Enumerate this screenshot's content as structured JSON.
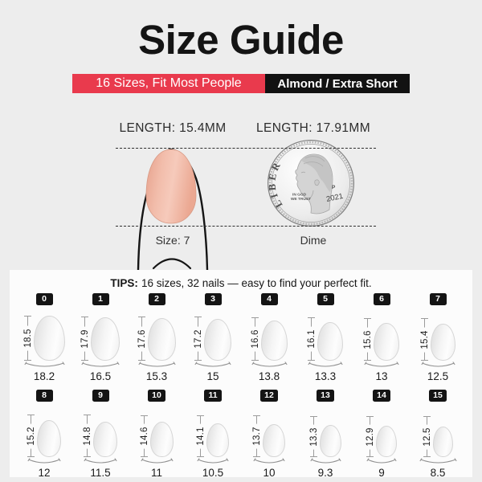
{
  "title": "Size Guide",
  "banner": {
    "left": "16 Sizes, Fit Most People",
    "right": "Almond / Extra Short"
  },
  "comparison": {
    "nail": {
      "length_label": "LENGTH: 15.4MM",
      "caption": "Size: 7"
    },
    "dime": {
      "length_label": "LENGTH: 17.91MM",
      "caption": "Dime",
      "coin": {
        "liberty": "LIBERTY",
        "motto_line1": "IN GOD",
        "motto_line2": "WE TRUST",
        "year": "2021",
        "mint_mark": "P"
      }
    }
  },
  "tips": {
    "label": "TIPS:",
    "text": "16 sizes, 32 nails — easy to find your perfect fit."
  },
  "sizes": [
    {
      "num": "0",
      "length_mm": "18.5",
      "width_mm": "18.2"
    },
    {
      "num": "1",
      "length_mm": "17.9",
      "width_mm": "16.5"
    },
    {
      "num": "2",
      "length_mm": "17.6",
      "width_mm": "15.3"
    },
    {
      "num": "3",
      "length_mm": "17.2",
      "width_mm": "15"
    },
    {
      "num": "4",
      "length_mm": "16.6",
      "width_mm": "13.8"
    },
    {
      "num": "5",
      "length_mm": "16.1",
      "width_mm": "13.3"
    },
    {
      "num": "6",
      "length_mm": "15.6",
      "width_mm": "13"
    },
    {
      "num": "7",
      "length_mm": "15.4",
      "width_mm": "12.5"
    },
    {
      "num": "8",
      "length_mm": "15.2",
      "width_mm": "12"
    },
    {
      "num": "9",
      "length_mm": "14.8",
      "width_mm": "11.5"
    },
    {
      "num": "10",
      "length_mm": "14.6",
      "width_mm": "11"
    },
    {
      "num": "11",
      "length_mm": "14.1",
      "width_mm": "10.5"
    },
    {
      "num": "12",
      "length_mm": "13.7",
      "width_mm": "10"
    },
    {
      "num": "13",
      "length_mm": "13.3",
      "width_mm": "9.3"
    },
    {
      "num": "14",
      "length_mm": "12.9",
      "width_mm": "9"
    },
    {
      "num": "15",
      "length_mm": "12.5",
      "width_mm": "8.5"
    }
  ],
  "colors": {
    "accent_red": "#e93a4d",
    "banner_black": "#121212",
    "page_background": "#ededed",
    "panel_background": "#fcfcfc",
    "nail_pink": "#eeae9a",
    "chart_nail_gray": "#ededed"
  }
}
